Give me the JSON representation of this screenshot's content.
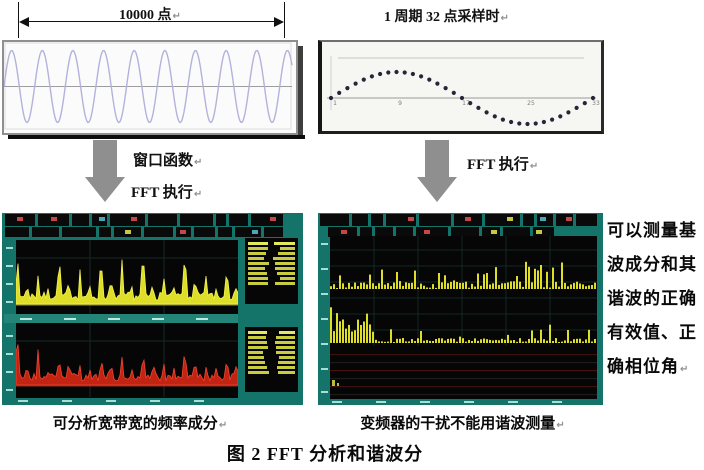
{
  "return_mark": "↵",
  "top_left": {
    "dimension_label": "10000 点"
  },
  "top_right": {
    "label": "1 周期 32 点采样时",
    "axis_ticks": [
      "1",
      "9",
      "17",
      "25",
      "33"
    ]
  },
  "flow": {
    "left_arrow": {
      "line1": "窗口函数",
      "line2": "FFT 执行"
    },
    "right_arrow": {
      "line1": "FFT 执行"
    }
  },
  "side_note": {
    "lines": [
      "可以测量基",
      "波成分和其",
      "谐波的正确",
      "有效值、正",
      "确相位角"
    ]
  },
  "captions": {
    "left": "可分析宽带宽的频率成分",
    "right": "变频器的干扰不能用谐波测量"
  },
  "figure_caption": "图 2  FFT 分析和谐波分",
  "colors": {
    "scope_teal": "#15746a",
    "trace_yellow": "#dede28",
    "trace_red": "#c22413",
    "wave_purple": "#b2b2dc",
    "table_text": "#c9cc3f",
    "divider_teal": "#238578",
    "tick_teal": "#a8ded4"
  }
}
